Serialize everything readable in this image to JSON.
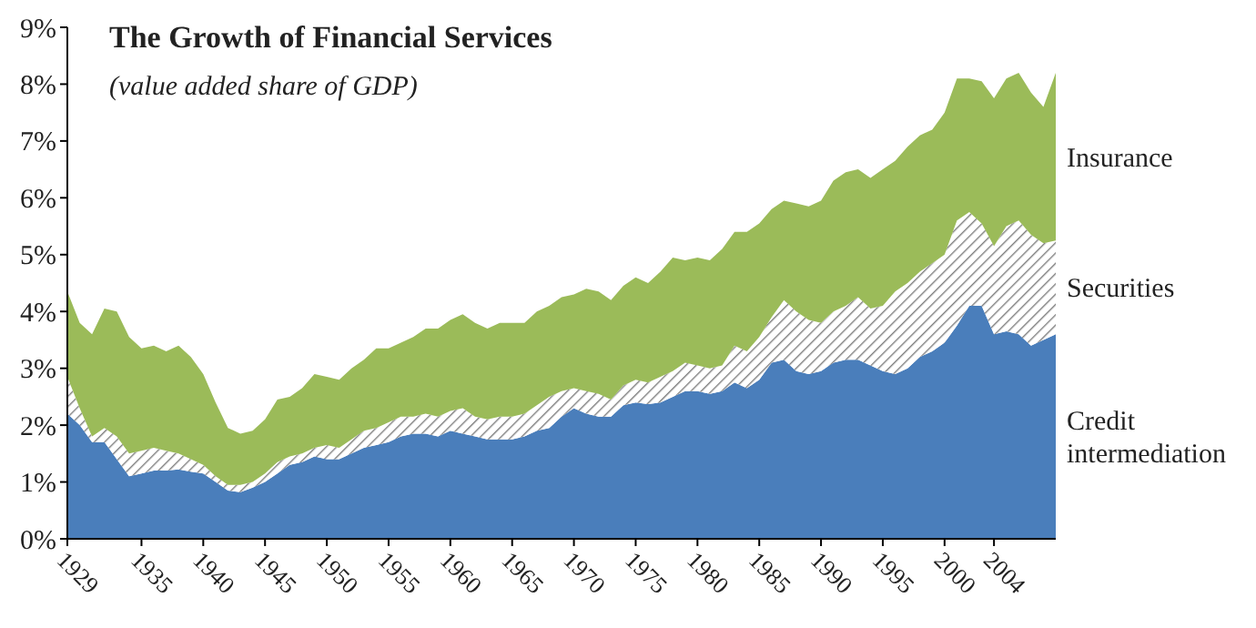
{
  "chart_data": {
    "type": "area",
    "title": "The Growth of Financial Services",
    "subtitle": "(value added share of GDP)",
    "stacked": true,
    "grid": false,
    "legend": false,
    "x": [
      1929,
      1930,
      1931,
      1932,
      1933,
      1934,
      1935,
      1936,
      1937,
      1938,
      1939,
      1940,
      1941,
      1942,
      1943,
      1944,
      1945,
      1946,
      1947,
      1948,
      1949,
      1950,
      1951,
      1952,
      1953,
      1954,
      1955,
      1956,
      1957,
      1958,
      1959,
      1960,
      1961,
      1962,
      1963,
      1964,
      1965,
      1966,
      1967,
      1968,
      1969,
      1970,
      1971,
      1972,
      1973,
      1974,
      1975,
      1976,
      1977,
      1978,
      1979,
      1980,
      1981,
      1982,
      1983,
      1984,
      1985,
      1986,
      1987,
      1988,
      1989,
      1990,
      1991,
      1992,
      1993,
      1994,
      1995,
      1996,
      1997,
      1998,
      1999,
      2000,
      2001,
      2002,
      2003,
      2004,
      2005,
      2006,
      2007,
      2008,
      2009
    ],
    "xlim": [
      1929,
      2009
    ],
    "xticks": [
      1929,
      1935,
      1940,
      1945,
      1950,
      1955,
      1960,
      1965,
      1970,
      1975,
      1980,
      1985,
      1990,
      1995,
      2000,
      2004
    ],
    "ylim": [
      0,
      9
    ],
    "yticks": [
      {
        "value": 0,
        "label": "0%"
      },
      {
        "value": 1,
        "label": "1%"
      },
      {
        "value": 2,
        "label": "2%"
      },
      {
        "value": 3,
        "label": "3%"
      },
      {
        "value": 4,
        "label": "4%"
      },
      {
        "value": 5,
        "label": "5%"
      },
      {
        "value": 6,
        "label": "6%"
      },
      {
        "value": 7,
        "label": "7%"
      },
      {
        "value": 8,
        "label": "8%"
      },
      {
        "value": 9,
        "label": "9%"
      }
    ],
    "series": [
      {
        "name": "Credit intermediation",
        "color": "#4a7ebb",
        "values": [
          2.2,
          2.0,
          1.7,
          1.7,
          1.4,
          1.1,
          1.15,
          1.2,
          1.2,
          1.22,
          1.18,
          1.15,
          1.0,
          0.85,
          0.82,
          0.9,
          1.0,
          1.15,
          1.3,
          1.35,
          1.45,
          1.4,
          1.4,
          1.5,
          1.6,
          1.65,
          1.7,
          1.8,
          1.85,
          1.85,
          1.8,
          1.9,
          1.85,
          1.8,
          1.75,
          1.75,
          1.75,
          1.8,
          1.9,
          1.95,
          2.15,
          2.3,
          2.2,
          2.15,
          2.15,
          2.35,
          2.4,
          2.37,
          2.4,
          2.5,
          2.6,
          2.6,
          2.55,
          2.6,
          2.75,
          2.65,
          2.8,
          3.1,
          3.15,
          2.95,
          2.9,
          2.95,
          3.1,
          3.15,
          3.15,
          3.05,
          2.95,
          2.9,
          3.0,
          3.2,
          3.3,
          3.45,
          3.75,
          4.1,
          4.1,
          3.6,
          3.65,
          3.6,
          3.4,
          3.5,
          3.6
        ]
      },
      {
        "name": "Securities",
        "color": "#7f7f7f",
        "values": [
          0.65,
          0.3,
          0.1,
          0.25,
          0.4,
          0.4,
          0.4,
          0.4,
          0.35,
          0.28,
          0.22,
          0.15,
          0.1,
          0.1,
          0.13,
          0.1,
          0.15,
          0.2,
          0.15,
          0.15,
          0.15,
          0.25,
          0.2,
          0.25,
          0.3,
          0.3,
          0.35,
          0.35,
          0.3,
          0.35,
          0.35,
          0.35,
          0.45,
          0.35,
          0.35,
          0.4,
          0.4,
          0.4,
          0.45,
          0.55,
          0.45,
          0.35,
          0.4,
          0.4,
          0.3,
          0.35,
          0.4,
          0.38,
          0.45,
          0.45,
          0.5,
          0.45,
          0.45,
          0.45,
          0.65,
          0.65,
          0.75,
          0.8,
          1.05,
          1.05,
          0.95,
          0.85,
          0.9,
          0.95,
          1.1,
          1.0,
          1.15,
          1.45,
          1.5,
          1.5,
          1.55,
          1.55,
          1.85,
          1.65,
          1.45,
          1.55,
          1.85,
          2.0,
          1.95,
          1.7,
          1.65
        ]
      },
      {
        "name": "Insurance",
        "color": "#9bbb59",
        "values": [
          1.5,
          1.5,
          1.8,
          2.1,
          2.2,
          2.05,
          1.8,
          1.8,
          1.75,
          1.9,
          1.8,
          1.6,
          1.3,
          1.0,
          0.9,
          0.9,
          0.95,
          1.1,
          1.05,
          1.15,
          1.3,
          1.2,
          1.2,
          1.25,
          1.25,
          1.4,
          1.3,
          1.3,
          1.4,
          1.5,
          1.55,
          1.6,
          1.65,
          1.65,
          1.6,
          1.65,
          1.65,
          1.6,
          1.65,
          1.6,
          1.65,
          1.65,
          1.8,
          1.8,
          1.75,
          1.75,
          1.8,
          1.75,
          1.85,
          2.0,
          1.8,
          1.9,
          1.9,
          2.05,
          2.0,
          2.1,
          2.0,
          1.9,
          1.75,
          1.9,
          2.0,
          2.15,
          2.3,
          2.35,
          2.25,
          2.3,
          2.4,
          2.3,
          2.4,
          2.4,
          2.35,
          2.5,
          2.5,
          2.35,
          2.5,
          2.6,
          2.6,
          2.6,
          2.5,
          2.4,
          2.95
        ]
      }
    ]
  }
}
